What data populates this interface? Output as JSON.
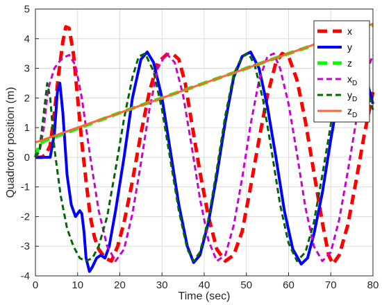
{
  "chart_data": {
    "type": "line",
    "title": "",
    "xlabel": "Time (sec)",
    "ylabel": "Quadrotor position (m)",
    "xlim": [
      0,
      80
    ],
    "ylim": [
      -4,
      5
    ],
    "xticks": [
      0,
      10,
      20,
      30,
      40,
      50,
      60,
      70,
      80
    ],
    "yticks": [
      -4,
      -3,
      -2,
      -1,
      0,
      1,
      2,
      3,
      4,
      5
    ],
    "grid": true,
    "legend_position": "top-right",
    "series": [
      {
        "name": "x",
        "legend_main": "x",
        "legend_sub": "",
        "color": "#ff0000",
        "style": "dash-thick",
        "points": [
          [
            0,
            0
          ],
          [
            1.5,
            0
          ],
          [
            2.5,
            0.1
          ],
          [
            3.5,
            0.4
          ],
          [
            4.5,
            1.5
          ],
          [
            5.5,
            2.8
          ],
          [
            6.5,
            3.9
          ],
          [
            7.2,
            4.4
          ],
          [
            8.0,
            4.35
          ],
          [
            9.0,
            3.5
          ],
          [
            10.0,
            2.0
          ],
          [
            11.0,
            0.5
          ],
          [
            12.0,
            -0.8
          ],
          [
            13.0,
            -2.0
          ],
          [
            14.0,
            -2.7
          ],
          [
            15.0,
            -3.1
          ],
          [
            16.5,
            -3.4
          ],
          [
            18.0,
            -3.5
          ],
          [
            19.5,
            -3.0
          ],
          [
            21.0,
            -2.2
          ],
          [
            23.0,
            -0.8
          ],
          [
            25.0,
            0.8
          ],
          [
            27.0,
            2.2
          ],
          [
            29.0,
            3.2
          ],
          [
            31.0,
            3.45
          ],
          [
            32.5,
            3.5
          ],
          [
            34.0,
            3.3
          ],
          [
            35.5,
            2.5
          ],
          [
            37.0,
            1.2
          ],
          [
            39.0,
            -0.5
          ],
          [
            41.0,
            -2.0
          ],
          [
            43.0,
            -3.1
          ],
          [
            45.0,
            -3.5
          ],
          [
            47.0,
            -3.3
          ],
          [
            49.0,
            -2.5
          ],
          [
            51.0,
            -1.0
          ],
          [
            53.0,
            0.6
          ],
          [
            55.0,
            2.1
          ],
          [
            57.0,
            3.2
          ],
          [
            58.5,
            3.5
          ],
          [
            60.0,
            3.4
          ],
          [
            62.0,
            2.6
          ],
          [
            64.0,
            1.2
          ],
          [
            66.0,
            -0.5
          ],
          [
            68.0,
            -2.2
          ],
          [
            69.5,
            -3.3
          ],
          [
            70.5,
            -3.6
          ],
          [
            72.0,
            -3.3
          ],
          [
            74.0,
            -2.3
          ],
          [
            76.0,
            -0.8
          ],
          [
            78.0,
            0.8
          ],
          [
            80.0,
            2.2
          ]
        ]
      },
      {
        "name": "y",
        "legend_main": "y",
        "legend_sub": "",
        "color": "#0000ff",
        "style": "solid-thick",
        "points": [
          [
            0,
            0
          ],
          [
            3.5,
            0
          ],
          [
            4.5,
            0.8
          ],
          [
            5.2,
            2.2
          ],
          [
            5.8,
            2.5
          ],
          [
            6.5,
            1.5
          ],
          [
            7.5,
            -0.6
          ],
          [
            8.5,
            -1.6
          ],
          [
            9.5,
            -2.0
          ],
          [
            10.5,
            -1.8
          ],
          [
            11.0,
            -1.9
          ],
          [
            11.5,
            -2.5
          ],
          [
            12.0,
            -3.4
          ],
          [
            12.8,
            -3.85
          ],
          [
            13.5,
            -3.7
          ],
          [
            14.5,
            -3.4
          ],
          [
            15.5,
            -3.3
          ],
          [
            16.5,
            -3.4
          ],
          [
            17.5,
            -3.0
          ],
          [
            19.0,
            -1.8
          ],
          [
            21.0,
            0.0
          ],
          [
            23.0,
            2.0
          ],
          [
            25.0,
            3.3
          ],
          [
            26.5,
            3.55
          ],
          [
            28.0,
            3.2
          ],
          [
            30.0,
            2.0
          ],
          [
            32.0,
            0.2
          ],
          [
            34.0,
            -1.6
          ],
          [
            36.0,
            -3.0
          ],
          [
            37.5,
            -3.55
          ],
          [
            39.0,
            -3.3
          ],
          [
            41.0,
            -2.2
          ],
          [
            43.0,
            -0.6
          ],
          [
            45.0,
            1.2
          ],
          [
            47.0,
            2.7
          ],
          [
            49.0,
            3.4
          ],
          [
            51.0,
            3.55
          ],
          [
            53.0,
            3.0
          ],
          [
            55.0,
            1.7
          ],
          [
            57.0,
            0.0
          ],
          [
            59.0,
            -1.8
          ],
          [
            61.0,
            -3.1
          ],
          [
            63.0,
            -3.6
          ],
          [
            64.5,
            -3.4
          ],
          [
            66.0,
            -2.6
          ],
          [
            68.0,
            -1.2
          ],
          [
            70.0,
            0.6
          ],
          [
            72.0,
            2.2
          ],
          [
            74.0,
            3.2
          ],
          [
            75.5,
            3.5
          ],
          [
            77.0,
            3.3
          ],
          [
            78.5,
            2.6
          ],
          [
            80.0,
            1.8
          ]
        ]
      },
      {
        "name": "z",
        "legend_main": "z",
        "legend_sub": "",
        "color": "#00ff00",
        "style": "dash-thick",
        "points": [
          [
            0,
            0
          ],
          [
            1.0,
            0.45
          ],
          [
            2.0,
            0.55
          ],
          [
            20,
            1.5
          ],
          [
            40,
            2.5
          ],
          [
            60,
            3.5
          ],
          [
            80,
            4.45
          ]
        ]
      },
      {
        "name": "xD",
        "legend_main": "x",
        "legend_sub": "D",
        "color": "#cc00cc",
        "style": "dash",
        "points": [
          [
            0,
            0
          ],
          [
            1.0,
            0.2
          ],
          [
            2.0,
            1.0
          ],
          [
            3.0,
            2.3
          ],
          [
            4.5,
            3.0
          ],
          [
            5.5,
            3.2
          ],
          [
            6.5,
            3.35
          ],
          [
            8.0,
            3.45
          ],
          [
            9.5,
            3.1
          ],
          [
            11.0,
            2.0
          ],
          [
            13.0,
            0.0
          ],
          [
            15.0,
            -1.8
          ],
          [
            17.0,
            -3.0
          ],
          [
            19.0,
            -3.5
          ],
          [
            21.0,
            -3.1
          ],
          [
            23.0,
            -1.9
          ],
          [
            25.0,
            -0.2
          ],
          [
            27.0,
            1.6
          ],
          [
            29.0,
            3.0
          ],
          [
            31.0,
            3.5
          ],
          [
            33.0,
            3.2
          ],
          [
            35.0,
            2.1
          ],
          [
            37.0,
            0.4
          ],
          [
            39.0,
            -1.4
          ],
          [
            41.0,
            -2.8
          ],
          [
            43.0,
            -3.5
          ],
          [
            45.0,
            -3.3
          ],
          [
            47.0,
            -2.3
          ],
          [
            49.0,
            -0.7
          ],
          [
            51.0,
            1.1
          ],
          [
            53.0,
            2.6
          ],
          [
            55.0,
            3.4
          ],
          [
            56.5,
            3.5
          ],
          [
            58.0,
            3.0
          ],
          [
            60.0,
            1.8
          ],
          [
            62.0,
            0.1
          ],
          [
            64.0,
            -1.7
          ],
          [
            66.0,
            -3.0
          ],
          [
            68.0,
            -3.5
          ],
          [
            70.0,
            -3.2
          ],
          [
            72.0,
            -2.1
          ],
          [
            74.0,
            -0.5
          ],
          [
            76.0,
            1.2
          ],
          [
            78.0,
            2.7
          ],
          [
            80.0,
            3.45
          ]
        ]
      },
      {
        "name": "yD",
        "legend_main": "y",
        "legend_sub": "D",
        "color": "#006600",
        "style": "dash",
        "points": [
          [
            0,
            0
          ],
          [
            1.0,
            0.3
          ],
          [
            2.0,
            1.5
          ],
          [
            2.8,
            2.5
          ],
          [
            3.5,
            2.0
          ],
          [
            4.5,
            0.3
          ],
          [
            6.0,
            -1.3
          ],
          [
            7.5,
            -2.4
          ],
          [
            9.0,
            -3.0
          ],
          [
            10.5,
            -3.4
          ],
          [
            12.0,
            -3.5
          ],
          [
            13.5,
            -3.4
          ],
          [
            15.0,
            -3.0
          ],
          [
            17.0,
            -2.0
          ],
          [
            19.0,
            -0.4
          ],
          [
            21.0,
            1.3
          ],
          [
            23.0,
            2.7
          ],
          [
            24.5,
            3.4
          ],
          [
            26.0,
            3.5
          ],
          [
            28.0,
            2.9
          ],
          [
            30.0,
            1.6
          ],
          [
            32.0,
            -0.1
          ],
          [
            34.0,
            -1.8
          ],
          [
            36.0,
            -3.1
          ],
          [
            37.5,
            -3.5
          ],
          [
            39.0,
            -3.2
          ],
          [
            41.0,
            -2.1
          ],
          [
            43.0,
            -0.4
          ],
          [
            45.0,
            1.4
          ],
          [
            47.0,
            2.8
          ],
          [
            49.0,
            3.4
          ],
          [
            50.5,
            3.5
          ],
          [
            52.0,
            3.1
          ],
          [
            54.0,
            1.9
          ],
          [
            56.0,
            0.2
          ],
          [
            58.0,
            -1.6
          ],
          [
            60.0,
            -2.9
          ],
          [
            62.0,
            -3.5
          ],
          [
            64.0,
            -3.2
          ],
          [
            66.0,
            -2.2
          ],
          [
            68.0,
            -0.6
          ],
          [
            70.0,
            1.1
          ],
          [
            72.0,
            2.6
          ],
          [
            74.0,
            3.4
          ],
          [
            75.5,
            3.5
          ],
          [
            77.0,
            3.2
          ],
          [
            78.5,
            2.4
          ],
          [
            80.0,
            1.6
          ]
        ]
      },
      {
        "name": "zD",
        "legend_main": "z",
        "legend_sub": "D",
        "color": "#ff6633",
        "style": "solid",
        "points": [
          [
            0,
            0.5
          ],
          [
            80,
            4.5
          ]
        ]
      }
    ]
  }
}
